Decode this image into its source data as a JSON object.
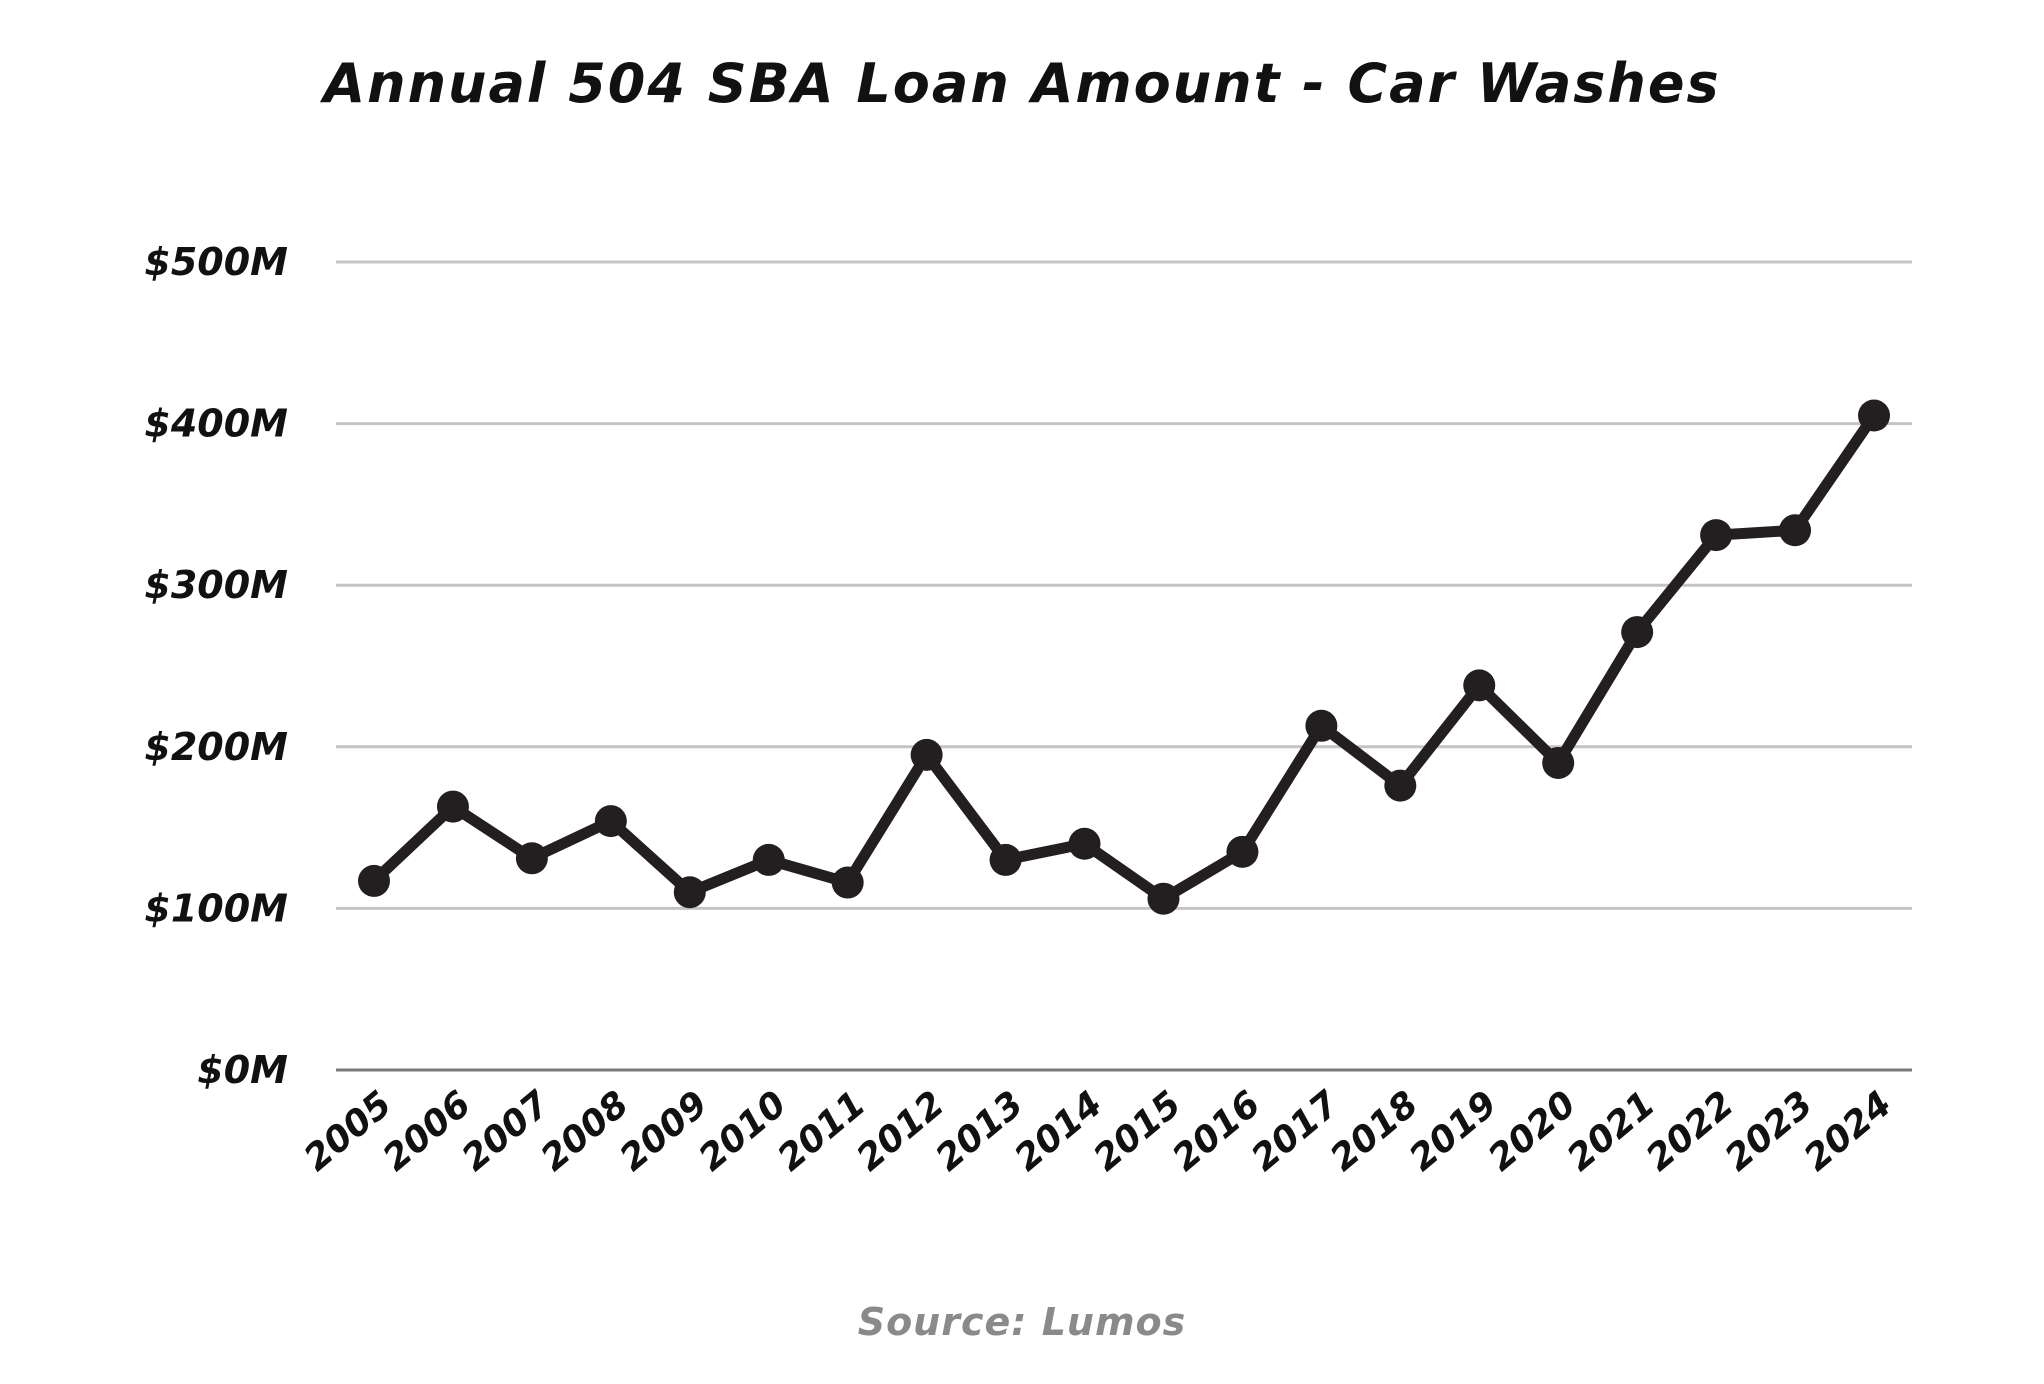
{
  "chart_data": {
    "type": "line",
    "title": "Annual 504 SBA Loan Amount - Car Washes",
    "xlabel": "",
    "ylabel": "",
    "source": "Source: Lumos",
    "x": [
      "2005",
      "2006",
      "2007",
      "2008",
      "2009",
      "2010",
      "2011",
      "2012",
      "2013",
      "2014",
      "2015",
      "2016",
      "2017",
      "2018",
      "2019",
      "2020",
      "2021",
      "2022",
      "2023",
      "2024"
    ],
    "series": [
      {
        "values": [
          117,
          163,
          131,
          154,
          110,
          130,
          116,
          195,
          130,
          140,
          106,
          135,
          213,
          176,
          238,
          190,
          271,
          331,
          334,
          405
        ]
      }
    ],
    "y_ticks": [
      "$0M",
      "$100M",
      "$200M",
      "$300M",
      "$400M",
      "$500M"
    ],
    "y_tick_values": [
      0,
      100,
      200,
      300,
      400,
      500
    ],
    "ylim": [
      0,
      500
    ],
    "grid": true,
    "legend": "none",
    "colors": {
      "line": "#231f20",
      "grid": "#c4c4c4",
      "baseline": "#7a7a7a",
      "source": "#8a8a8a"
    }
  }
}
